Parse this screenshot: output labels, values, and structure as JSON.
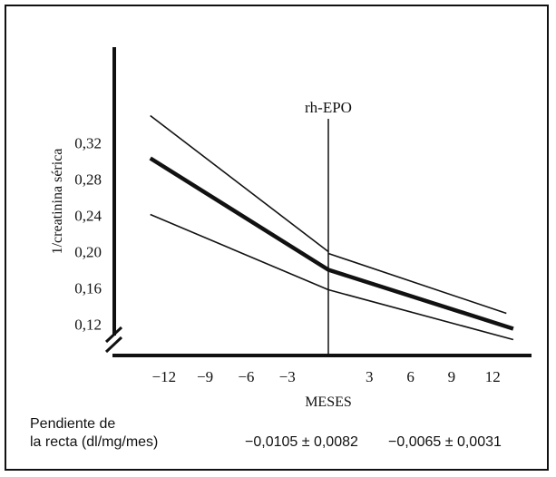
{
  "chart_data": {
    "type": "line",
    "title": "",
    "xlabel": "MESES",
    "ylabel": "1/creatinina sérica",
    "x_ticks": [
      -12,
      -9,
      -6,
      -3,
      3,
      6,
      9,
      12
    ],
    "x_tick_labels": [
      "−12",
      "−9",
      "−6",
      "−3",
      "3",
      "6",
      "9",
      "12"
    ],
    "y_ticks": [
      0.12,
      0.16,
      0.2,
      0.24,
      0.28,
      0.32
    ],
    "y_tick_labels": [
      "0,12",
      "0,16",
      "0,20",
      "0,24",
      "0,28",
      "0,32"
    ],
    "xlim": [
      -14.5,
      14.5
    ],
    "ylim": [
      0.1,
      0.355
    ],
    "axis_break": true,
    "vertical_marker": {
      "x": 0,
      "label": "rh-EPO"
    },
    "series": [
      {
        "role": "upper",
        "style": "thin",
        "segments": [
          [
            {
              "x": -13,
              "y": 0.35
            },
            {
              "x": 0,
              "y": 0.2
            }
          ],
          [
            {
              "x": 0,
              "y": 0.198
            },
            {
              "x": 13,
              "y": 0.132
            }
          ]
        ]
      },
      {
        "role": "mean",
        "style": "thick",
        "segments": [
          [
            {
              "x": -13,
              "y": 0.303
            },
            {
              "x": 0,
              "y": 0.18
            },
            {
              "x": 13.5,
              "y": 0.115
            }
          ]
        ]
      },
      {
        "role": "lower",
        "style": "thin",
        "segments": [
          [
            {
              "x": -13,
              "y": 0.241
            },
            {
              "x": 0,
              "y": 0.158
            },
            {
              "x": 13.5,
              "y": 0.103
            }
          ]
        ]
      }
    ]
  },
  "footer": {
    "label_line1": "Pendiente de",
    "label_line2": "la recta (dl/mg/mes)",
    "value_before": "−0,0105 ± 0,0082",
    "value_after": "−0,0065 ± 0,0031"
  }
}
